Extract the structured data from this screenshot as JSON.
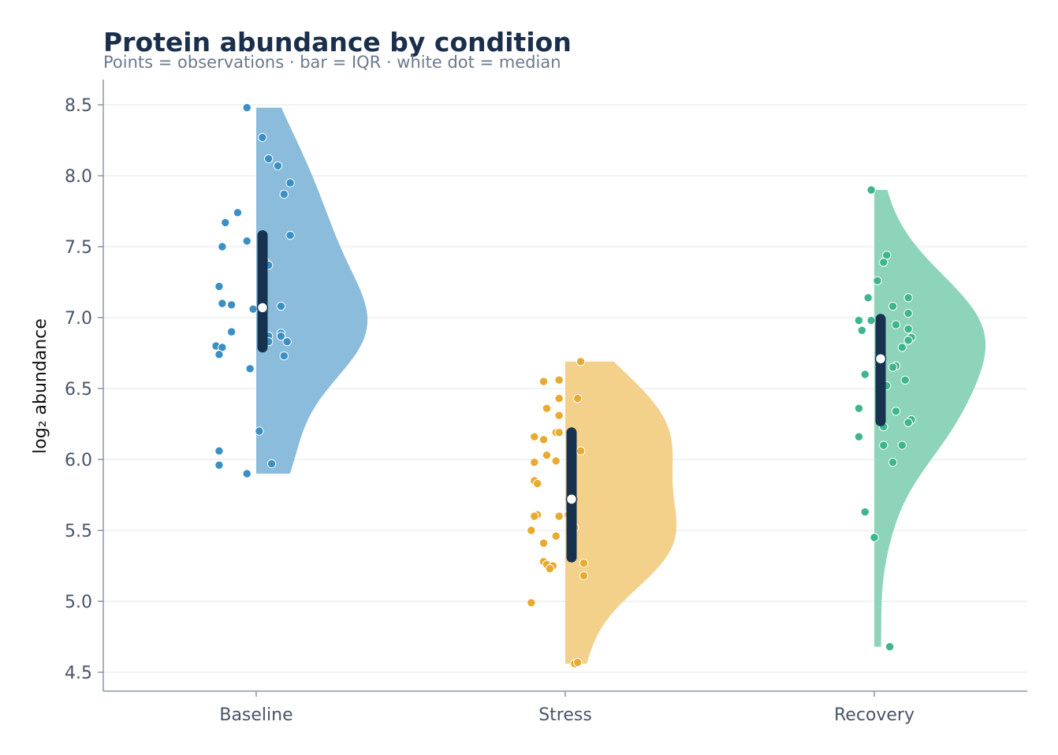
{
  "chart_data": {
    "type": "raincloud",
    "title": "Protein abundance by condition",
    "subtitle": "Points = observations · bar = IQR · white dot = median",
    "xlabel": "",
    "ylabel": "log₂ abundance",
    "ylim": [
      4.37,
      8.67
    ],
    "yticks": [
      4.5,
      5.0,
      5.5,
      6.0,
      6.5,
      7.0,
      7.5,
      8.0,
      8.5
    ],
    "ytick_labels": [
      "4.5",
      "5.0",
      "5.5",
      "6.0",
      "6.5",
      "7.0",
      "7.5",
      "8.0",
      "8.5"
    ],
    "grid": true,
    "legend": "none",
    "categories": [
      "Baseline",
      "Stress",
      "Recovery"
    ],
    "series": [
      {
        "category": "Baseline",
        "color": "#3a8fc4",
        "cloud_color": "#8bbcdb",
        "median": 7.07,
        "q1": 6.79,
        "q3": 7.58,
        "min": 5.9,
        "max": 8.48,
        "points": [
          {
            "offset": -0.03,
            "y": 8.48
          },
          {
            "offset": 0.02,
            "y": 8.27
          },
          {
            "offset": 0.04,
            "y": 8.12
          },
          {
            "offset": 0.07,
            "y": 8.07
          },
          {
            "offset": 0.11,
            "y": 7.95
          },
          {
            "offset": 0.09,
            "y": 7.87
          },
          {
            "offset": -0.06,
            "y": 7.74
          },
          {
            "offset": -0.1,
            "y": 7.67
          },
          {
            "offset": 0.11,
            "y": 7.58
          },
          {
            "offset": -0.03,
            "y": 7.54
          },
          {
            "offset": -0.11,
            "y": 7.5
          },
          {
            "offset": 0.03,
            "y": 7.39
          },
          {
            "offset": 0.04,
            "y": 7.37
          },
          {
            "offset": -0.12,
            "y": 7.22
          },
          {
            "offset": -0.11,
            "y": 7.1
          },
          {
            "offset": -0.08,
            "y": 7.09
          },
          {
            "offset": -0.01,
            "y": 7.06
          },
          {
            "offset": 0.08,
            "y": 7.08
          },
          {
            "offset": -0.08,
            "y": 6.9
          },
          {
            "offset": 0.04,
            "y": 6.87
          },
          {
            "offset": 0.08,
            "y": 6.89
          },
          {
            "offset": 0.08,
            "y": 6.87
          },
          {
            "offset": 0.04,
            "y": 6.83
          },
          {
            "offset": 0.1,
            "y": 6.83
          },
          {
            "offset": -0.13,
            "y": 6.8
          },
          {
            "offset": -0.11,
            "y": 6.79
          },
          {
            "offset": -0.12,
            "y": 6.74
          },
          {
            "offset": 0.09,
            "y": 6.73
          },
          {
            "offset": -0.02,
            "y": 6.64
          },
          {
            "offset": 0.01,
            "y": 6.2
          },
          {
            "offset": -0.12,
            "y": 6.06
          },
          {
            "offset": -0.12,
            "y": 5.96
          },
          {
            "offset": 0.05,
            "y": 5.97
          },
          {
            "offset": -0.03,
            "y": 5.9
          }
        ]
      },
      {
        "category": "Stress",
        "color": "#e8ab30",
        "cloud_color": "#f3d18b",
        "median": 5.72,
        "q1": 5.31,
        "q3": 6.19,
        "min": 4.56,
        "max": 6.69,
        "points": [
          {
            "offset": 0.05,
            "y": 6.69
          },
          {
            "offset": -0.02,
            "y": 6.56
          },
          {
            "offset": -0.07,
            "y": 6.55
          },
          {
            "offset": 0.04,
            "y": 6.43
          },
          {
            "offset": -0.02,
            "y": 6.43
          },
          {
            "offset": -0.06,
            "y": 6.36
          },
          {
            "offset": -0.02,
            "y": 6.31
          },
          {
            "offset": -0.03,
            "y": 6.19
          },
          {
            "offset": -0.02,
            "y": 6.19
          },
          {
            "offset": -0.1,
            "y": 6.16
          },
          {
            "offset": -0.07,
            "y": 6.14
          },
          {
            "offset": 0.05,
            "y": 6.06
          },
          {
            "offset": -0.06,
            "y": 6.03
          },
          {
            "offset": -0.03,
            "y": 5.99
          },
          {
            "offset": -0.1,
            "y": 5.98
          },
          {
            "offset": -0.1,
            "y": 5.85
          },
          {
            "offset": -0.09,
            "y": 5.83
          },
          {
            "offset": 0.01,
            "y": 5.61
          },
          {
            "offset": -0.02,
            "y": 5.6
          },
          {
            "offset": -0.09,
            "y": 5.61
          },
          {
            "offset": -0.1,
            "y": 5.6
          },
          {
            "offset": 0.03,
            "y": 5.52
          },
          {
            "offset": -0.11,
            "y": 5.5
          },
          {
            "offset": -0.03,
            "y": 5.46
          },
          {
            "offset": -0.07,
            "y": 5.41
          },
          {
            "offset": -0.07,
            "y": 5.28
          },
          {
            "offset": -0.06,
            "y": 5.26
          },
          {
            "offset": -0.04,
            "y": 5.25
          },
          {
            "offset": -0.05,
            "y": 5.23
          },
          {
            "offset": 0.06,
            "y": 5.27
          },
          {
            "offset": 0.06,
            "y": 5.18
          },
          {
            "offset": -0.11,
            "y": 4.99
          },
          {
            "offset": 0.03,
            "y": 4.56
          },
          {
            "offset": 0.04,
            "y": 4.57
          }
        ]
      },
      {
        "category": "Recovery",
        "color": "#3db58d",
        "cloud_color": "#8dd4bb",
        "median": 6.71,
        "q1": 6.27,
        "q3": 6.99,
        "min": 4.68,
        "max": 7.9,
        "points": [
          {
            "offset": -0.01,
            "y": 7.9
          },
          {
            "offset": 0.04,
            "y": 7.44
          },
          {
            "offset": 0.03,
            "y": 7.39
          },
          {
            "offset": 0.01,
            "y": 7.26
          },
          {
            "offset": -0.02,
            "y": 7.14
          },
          {
            "offset": 0.11,
            "y": 7.14
          },
          {
            "offset": 0.06,
            "y": 7.08
          },
          {
            "offset": 0.11,
            "y": 7.03
          },
          {
            "offset": -0.05,
            "y": 6.98
          },
          {
            "offset": -0.01,
            "y": 6.98
          },
          {
            "offset": 0.07,
            "y": 6.95
          },
          {
            "offset": 0.11,
            "y": 6.92
          },
          {
            "offset": -0.04,
            "y": 6.91
          },
          {
            "offset": 0.12,
            "y": 6.86
          },
          {
            "offset": 0.11,
            "y": 6.84
          },
          {
            "offset": 0.09,
            "y": 6.79
          },
          {
            "offset": 0.02,
            "y": 6.76
          },
          {
            "offset": 0.07,
            "y": 6.66
          },
          {
            "offset": 0.06,
            "y": 6.65
          },
          {
            "offset": 0.1,
            "y": 6.56
          },
          {
            "offset": -0.03,
            "y": 6.6
          },
          {
            "offset": 0.04,
            "y": 6.52
          },
          {
            "offset": -0.05,
            "y": 6.36
          },
          {
            "offset": 0.07,
            "y": 6.34
          },
          {
            "offset": 0.12,
            "y": 6.28
          },
          {
            "offset": 0.11,
            "y": 6.26
          },
          {
            "offset": 0.03,
            "y": 6.23
          },
          {
            "offset": -0.05,
            "y": 6.16
          },
          {
            "offset": 0.03,
            "y": 6.1
          },
          {
            "offset": 0.09,
            "y": 6.1
          },
          {
            "offset": 0.06,
            "y": 5.98
          },
          {
            "offset": -0.03,
            "y": 5.63
          },
          {
            "offset": 0.0,
            "y": 5.45
          },
          {
            "offset": 0.05,
            "y": 4.68
          }
        ]
      }
    ]
  }
}
